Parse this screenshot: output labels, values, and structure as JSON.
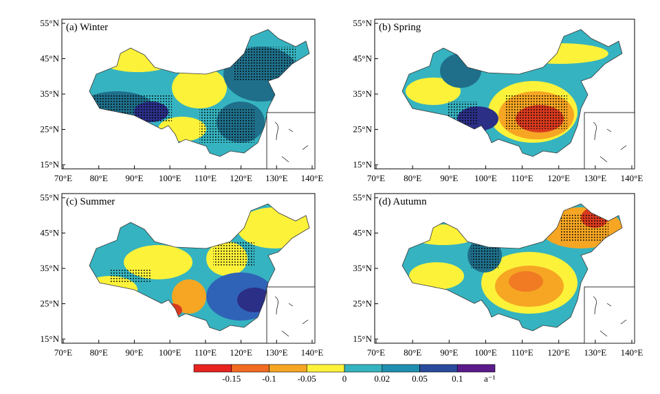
{
  "panels": [
    {
      "key": "winter",
      "title": "(a)  Winter"
    },
    {
      "key": "spring",
      "title": "(b)  Spring"
    },
    {
      "key": "summer",
      "title": "(c)  Summer"
    },
    {
      "key": "autumn",
      "title": "(d)  Autumn"
    }
  ],
  "lat_ticks": [
    "55°N",
    "45°N",
    "35°N",
    "25°N",
    "15°N"
  ],
  "lon_ticks": [
    "70°E",
    "80°E",
    "90°E",
    "100°E",
    "110°E",
    "120°E",
    "130°E",
    "140°E"
  ],
  "colorbar": {
    "labels": [
      "-0.15",
      "-0.1",
      "-0.05",
      "0",
      "0.02",
      "0.05",
      "0.1"
    ],
    "unit": "a⁻¹",
    "colors": [
      "#e8231f",
      "#f26b22",
      "#f6a623",
      "#fdf23a",
      "#36b3c0",
      "#1f8fb0",
      "#2b4a9c",
      "#5a1a8a"
    ]
  },
  "palette": {
    "yellow": "#fdf23a",
    "teal": "#36b3c0",
    "dark_teal": "#1f6f8a",
    "blue": "#2f63b8",
    "navy": "#2b2f86",
    "orange": "#f6a623",
    "dark_orange": "#f07b23",
    "red": "#d93a1f"
  }
}
